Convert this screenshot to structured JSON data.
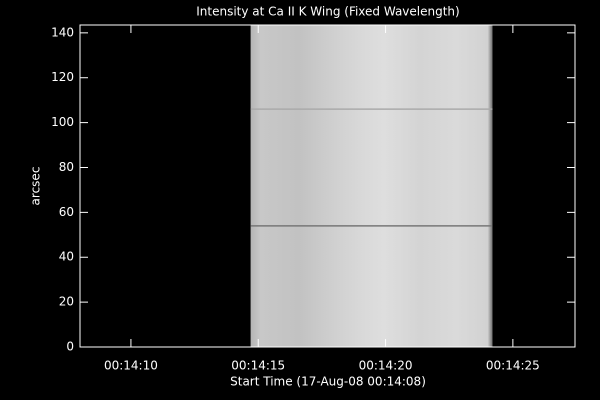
{
  "chart_data": {
    "type": "image",
    "title": "Intensity at Ca II K Wing (Fixed Wavelength)",
    "xlabel": "Start Time (17-Aug-08 00:14:08)",
    "ylabel": "arcsec",
    "xlim": [
      0,
      19.44
    ],
    "xticks": [
      {
        "value": 2,
        "label": "00:14:10"
      },
      {
        "value": 7,
        "label": "00:14:15"
      },
      {
        "value": 12,
        "label": "00:14:20"
      },
      {
        "value": 17,
        "label": "00:14:25"
      }
    ],
    "ylim": [
      0,
      143.5
    ],
    "yticks": [
      0,
      20,
      40,
      60,
      80,
      100,
      120,
      140
    ],
    "image_x": [
      6.7,
      16.2
    ],
    "dark_rows": [
      54,
      106
    ]
  }
}
